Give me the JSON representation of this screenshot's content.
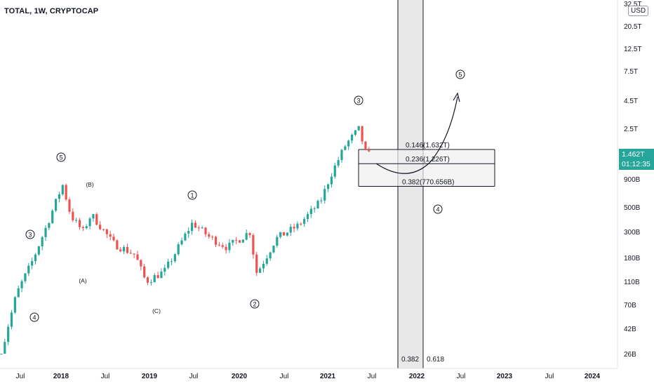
{
  "header": {
    "symbol_title": "TOTAL, 1W, CRYPTOCAP",
    "currency": "USD"
  },
  "last_price": {
    "value": "1.462T",
    "countdown": "01:12:35"
  },
  "colors": {
    "up": "#26a69a",
    "down": "#ef5350",
    "axis_text": "#131722",
    "box_fill": "#f0f0f0",
    "line": "#131722"
  },
  "chart_data": {
    "type": "candlestick",
    "title": "TOTAL, 1W, CRYPTOCAP",
    "scale": "log",
    "y_unit": "USD",
    "y_ticks": [
      "32.5T",
      "20.5T",
      "12.5T",
      "7.5T",
      "4.5T",
      "2.5T",
      "900B",
      "500B",
      "300B",
      "180B",
      "110B",
      "70B",
      "42B",
      "26B"
    ],
    "x_ticks": [
      "Jul",
      "2018",
      "Jul",
      "2019",
      "Jul",
      "2020",
      "Jul",
      "2021",
      "Jul",
      "2022",
      "Jul",
      "2023",
      "Jul",
      "2024"
    ],
    "wave_labels": [
      "3",
      "4",
      "5",
      "(A)",
      "(B)",
      "(C)",
      "1",
      "2",
      "3",
      "4",
      "5"
    ],
    "fib_levels": [
      {
        "label": "0.146(1.632T)",
        "ratio": 0.146,
        "price": "1.632T"
      },
      {
        "label": "0.236(1.226T)",
        "ratio": 0.236,
        "price": "1.226T"
      },
      {
        "label": "0.382(770.656B)",
        "ratio": 0.382,
        "price": "770.656B"
      }
    ],
    "time_fib_labels": [
      "0.382",
      "0.618"
    ],
    "price_path": [
      [
        "2017-05-01",
        26
      ],
      [
        "2017-07-01",
        85
      ],
      [
        "2017-09-01",
        160
      ],
      [
        "2017-11-01",
        330
      ],
      [
        "2018-01-07",
        800
      ],
      [
        "2018-02-10",
        420
      ],
      [
        "2018-04-01",
        300
      ],
      [
        "2018-05-05",
        430
      ],
      [
        "2018-08-01",
        240
      ],
      [
        "2018-11-01",
        190
      ],
      [
        "2018-12-15",
        110
      ],
      [
        "2019-03-01",
        135
      ],
      [
        "2019-06-25",
        360
      ],
      [
        "2019-09-01",
        270
      ],
      [
        "2019-11-15",
        220
      ],
      [
        "2020-02-15",
        300
      ],
      [
        "2020-03-15",
        130
      ],
      [
        "2020-06-01",
        260
      ],
      [
        "2020-09-01",
        340
      ],
      [
        "2020-12-01",
        560
      ],
      [
        "2021-01-15",
        1000
      ],
      [
        "2021-03-15",
        1800
      ],
      [
        "2021-05-10",
        2500
      ],
      [
        "2021-06-01",
        1550
      ],
      [
        "2021-06-20",
        1460
      ]
    ]
  }
}
